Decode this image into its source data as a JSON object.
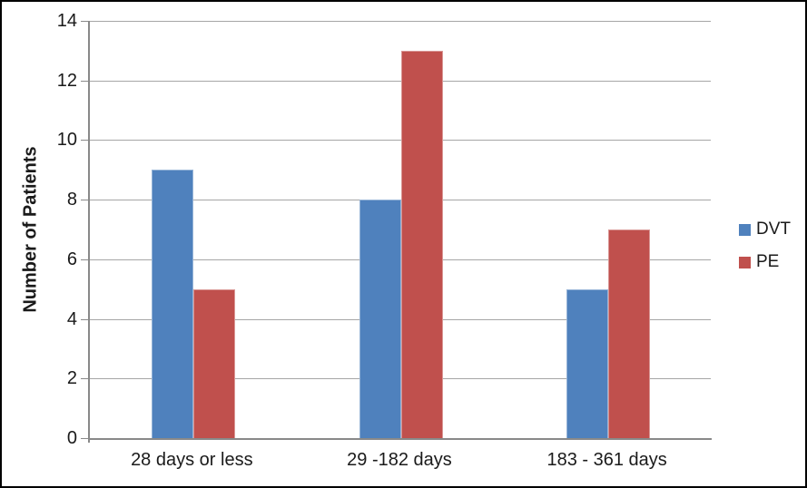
{
  "chart_data": {
    "type": "bar",
    "title": "",
    "xlabel": "",
    "ylabel": "Number of Patients",
    "categories": [
      "28 days or less",
      "29 -182 days",
      "183 - 361 days"
    ],
    "series": [
      {
        "name": "DVT",
        "values": [
          9,
          8,
          5
        ],
        "color": "#4f81bd",
        "border_color": "#95b3d7"
      },
      {
        "name": "PE",
        "values": [
          5,
          13,
          7
        ],
        "color": "#c0504d",
        "border_color": "#d99694"
      }
    ],
    "ylim": [
      0,
      14
    ],
    "yticks": [
      0,
      2,
      4,
      6,
      8,
      10,
      12,
      14
    ],
    "grid": "horizontal-only",
    "gridline_color": "#a6a6a6",
    "axis_color": "#898989",
    "legend_position": "right",
    "plot_background": "#ffffff",
    "frame_border_color": "#000000"
  }
}
